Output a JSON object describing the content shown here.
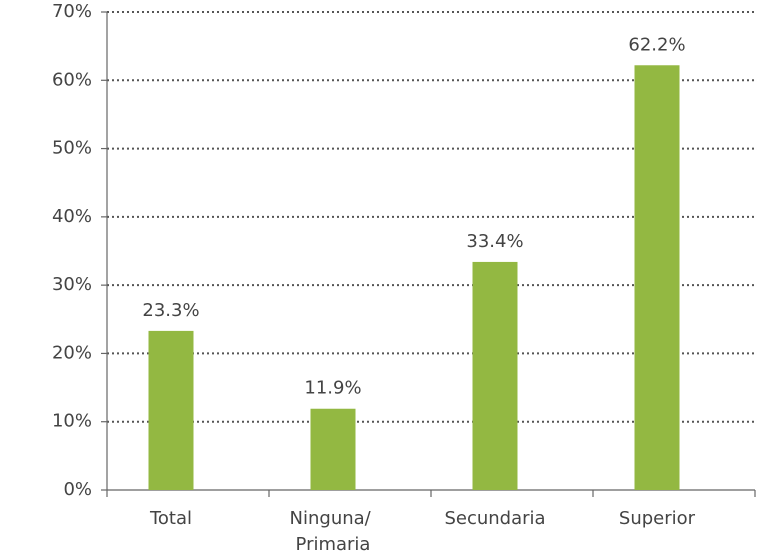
{
  "chart_data": {
    "type": "bar",
    "categories": [
      "Total",
      "Ninguna/ Primaria",
      "Secundaria",
      "Superior"
    ],
    "values": [
      23.3,
      11.9,
      33.4,
      62.2
    ],
    "value_labels": [
      "23.3%",
      "11.9%",
      "33.4%",
      "62.2%"
    ],
    "color": "#93b842",
    "ylim": [
      0,
      70
    ],
    "yticks": [
      {
        "value": 0,
        "label": "0%"
      },
      {
        "value": 10,
        "label": "10%"
      },
      {
        "value": 20,
        "label": "20%"
      },
      {
        "value": 30,
        "label": "30%"
      },
      {
        "value": 40,
        "label": "40%"
      },
      {
        "value": 50,
        "label": "50%"
      },
      {
        "value": 60,
        "label": "60%"
      },
      {
        "value": 70,
        "label": "70%"
      }
    ],
    "grid": true
  }
}
